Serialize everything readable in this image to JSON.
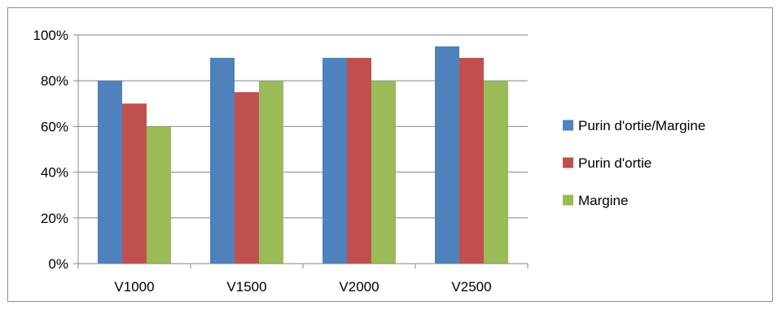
{
  "chart_data": {
    "type": "bar",
    "categories": [
      "V1000",
      "V1500",
      "V2000",
      "V2500"
    ],
    "series": [
      {
        "name": "Purin d'ortie/Margine",
        "values": [
          80,
          90,
          90,
          95
        ],
        "color": "#4f81bd"
      },
      {
        "name": "Purin d'ortie",
        "values": [
          70,
          75,
          90,
          90
        ],
        "color": "#c0504d"
      },
      {
        "name": "Margine",
        "values": [
          60,
          80,
          80,
          80
        ],
        "color": "#9bbb59"
      }
    ],
    "yticks": [
      "0%",
      "20%",
      "40%",
      "60%",
      "80%",
      "100%"
    ],
    "ylim": [
      0,
      100
    ],
    "grid": true,
    "legend": "right"
  }
}
